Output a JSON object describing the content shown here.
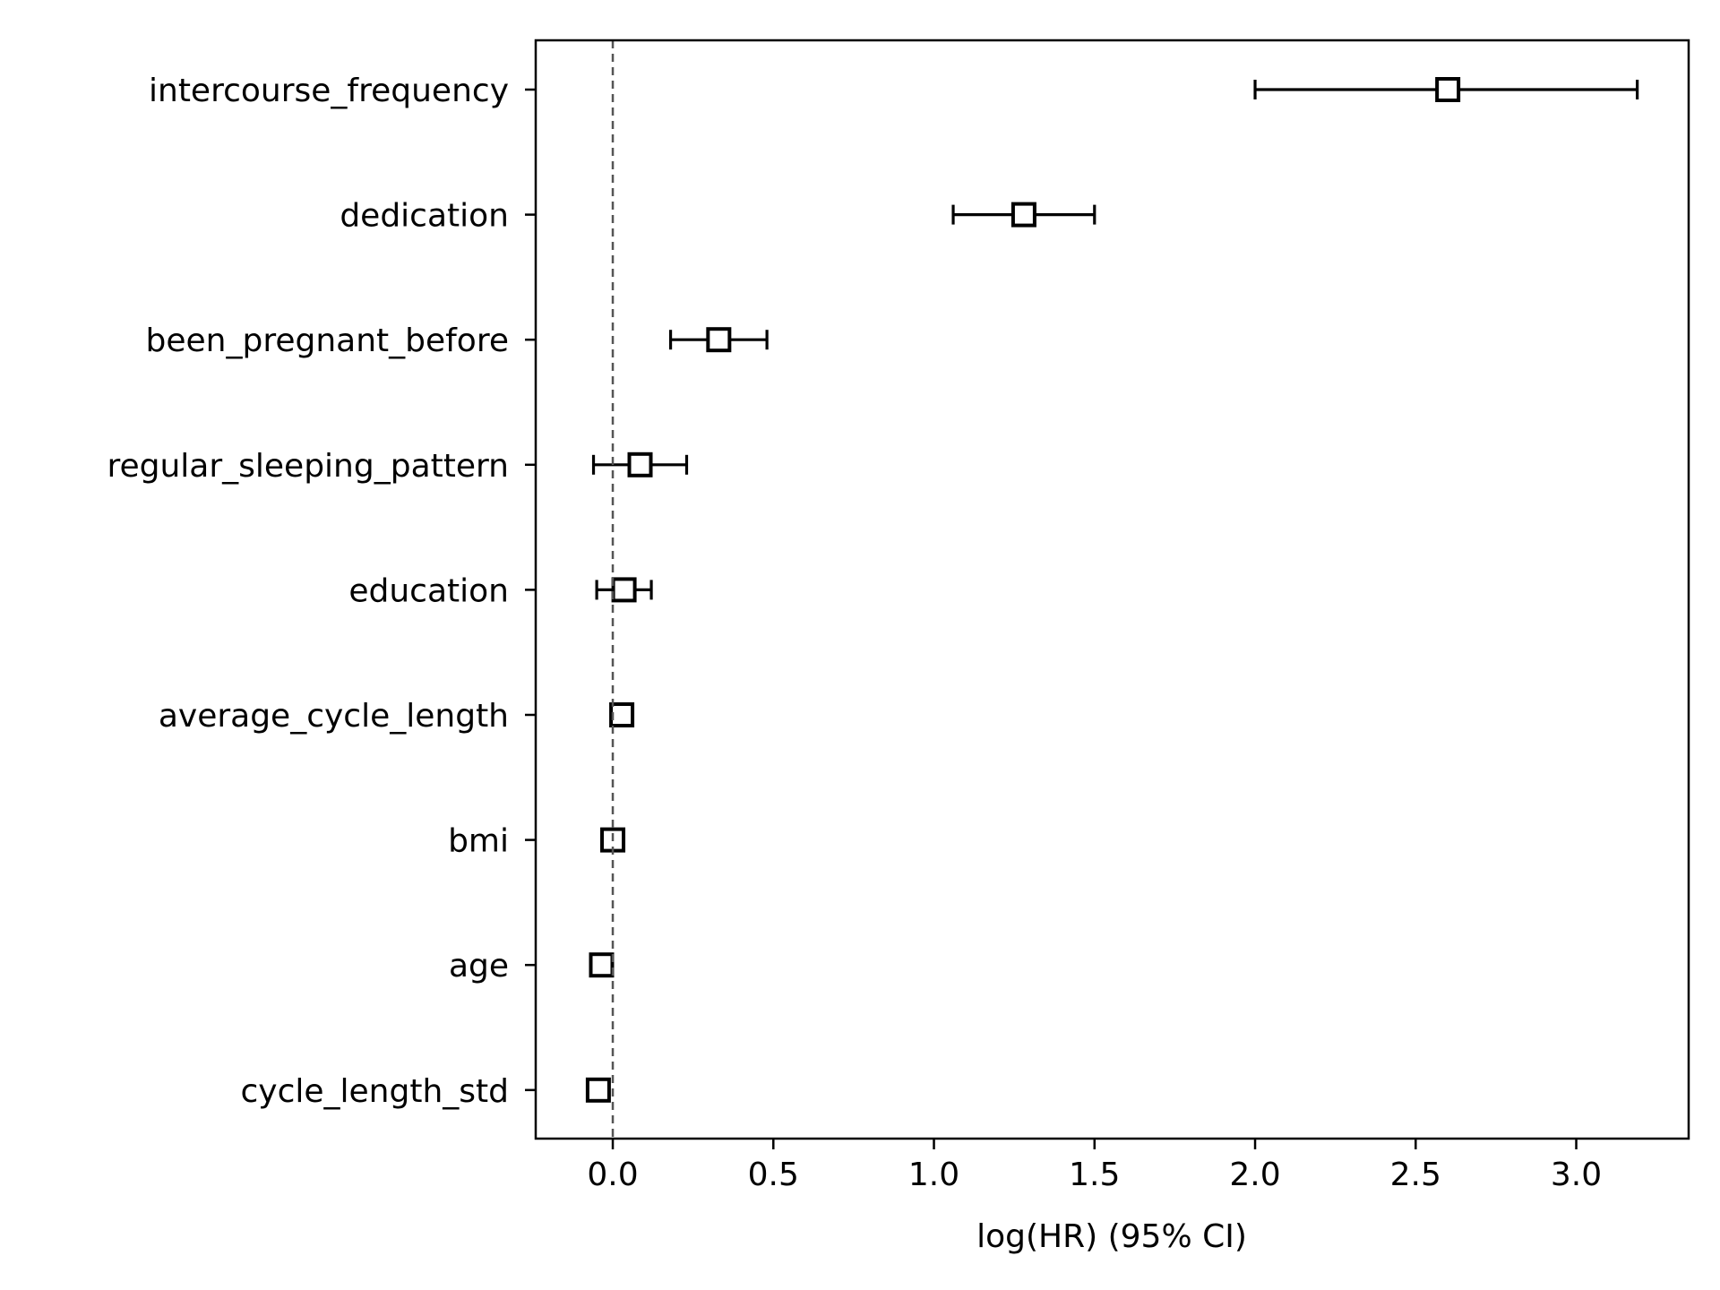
{
  "chart_data": {
    "type": "scatter",
    "subtype": "forest-plot",
    "title": "",
    "xlabel": "log(HR) (95% CI)",
    "ylabel": "",
    "xlim": [
      -0.24,
      3.35
    ],
    "xticks": [
      0.0,
      0.5,
      1.0,
      1.5,
      2.0,
      2.5,
      3.0
    ],
    "xtick_labels": [
      "0.0",
      "0.5",
      "1.0",
      "1.5",
      "2.0",
      "2.5",
      "3.0"
    ],
    "reference_line": 0.0,
    "grid": false,
    "legend": "none",
    "marker": "open-square",
    "color": "#000000",
    "reference_line_color": "#555555",
    "categories": [
      "intercourse_frequency",
      "dedication",
      "been_pregnant_before",
      "regular_sleeping_pattern",
      "education",
      "average_cycle_length",
      "bmi",
      "age",
      "cycle_length_std"
    ],
    "points": [
      {
        "name": "intercourse_frequency",
        "estimate": 2.6,
        "lower": 2.0,
        "upper": 3.19
      },
      {
        "name": "dedication",
        "estimate": 1.28,
        "lower": 1.06,
        "upper": 1.5
      },
      {
        "name": "been_pregnant_before",
        "estimate": 0.33,
        "lower": 0.18,
        "upper": 0.48
      },
      {
        "name": "regular_sleeping_pattern",
        "estimate": 0.085,
        "lower": -0.06,
        "upper": 0.23
      },
      {
        "name": "education",
        "estimate": 0.035,
        "lower": -0.05,
        "upper": 0.12
      },
      {
        "name": "average_cycle_length",
        "estimate": 0.028,
        "lower": 0.0,
        "upper": 0.05
      },
      {
        "name": "bmi",
        "estimate": 0.0,
        "lower": -0.02,
        "upper": 0.02
      },
      {
        "name": "age",
        "estimate": -0.035,
        "lower": -0.06,
        "upper": -0.01
      },
      {
        "name": "cycle_length_std",
        "estimate": -0.045,
        "lower": -0.07,
        "upper": -0.02
      }
    ]
  }
}
